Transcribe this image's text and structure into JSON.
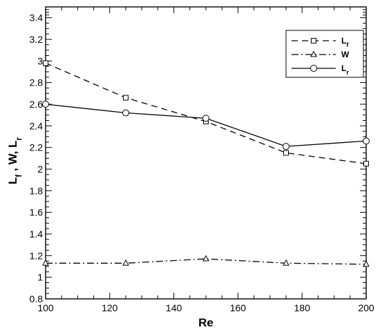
{
  "chart_data": {
    "type": "line",
    "xlabel": "Re",
    "ylabel": {
      "parts": [
        "L",
        "f",
        " , W, L",
        "r"
      ]
    },
    "xlim": [
      100,
      200
    ],
    "ylim": [
      0.8,
      3.5
    ],
    "xticks": [
      "100",
      "120",
      "140",
      "160",
      "180",
      "200"
    ],
    "yticks": [
      "0.8",
      "1",
      "1.2",
      "1.4",
      "1.6",
      "1.8",
      "2",
      "2.2",
      "2.4",
      "2.6",
      "2.8",
      "3",
      "3.2",
      "3.4"
    ],
    "legend_position": "top-right",
    "grid": false,
    "x": [
      100,
      125,
      150,
      175,
      200
    ],
    "series": [
      {
        "name": "Lf",
        "label": {
          "main": "L",
          "sub": "f"
        },
        "line": "dashed",
        "marker": "square",
        "values": [
          2.98,
          2.66,
          2.44,
          2.15,
          2.05
        ]
      },
      {
        "name": "W",
        "label": {
          "main": "W",
          "sub": ""
        },
        "line": "dash-dot",
        "marker": "triangle",
        "values": [
          1.13,
          1.13,
          1.17,
          1.13,
          1.12
        ]
      },
      {
        "name": "Lr",
        "label": {
          "main": "L",
          "sub": "r"
        },
        "line": "solid",
        "marker": "circle",
        "values": [
          2.6,
          2.52,
          2.47,
          2.21,
          2.26
        ]
      }
    ]
  }
}
